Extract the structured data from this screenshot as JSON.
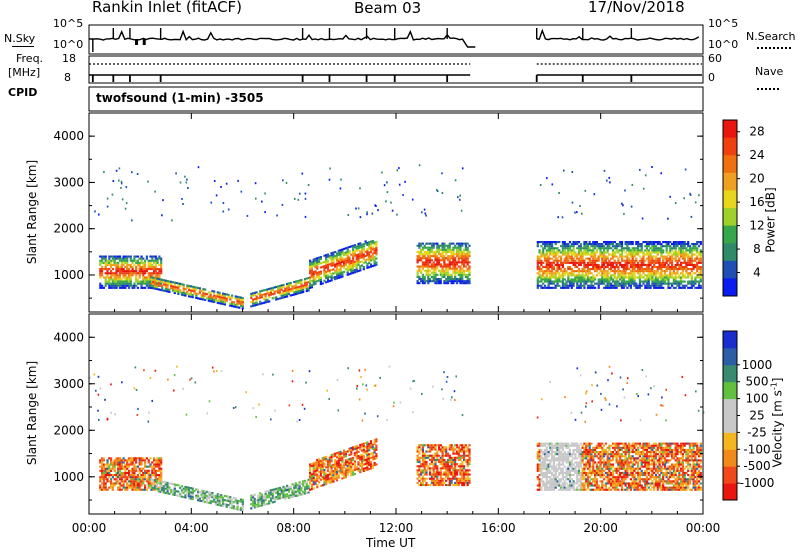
{
  "header": {
    "station": "Rankin Inlet (fitACF)",
    "beam": "Beam 03",
    "date": "17/Nov/2018"
  },
  "info": {
    "nsky_label": "N.Sky",
    "nsky_top": "10^5",
    "nsky_bottom": "10^0",
    "nsearch_label": "N.Search",
    "nsearch_top": "10^5",
    "nsearch_bottom": "10^0",
    "freq_label": "Freq.",
    "freq_unit": "[MHz]",
    "freq_top": "18",
    "freq_bottom": "8",
    "cpid_label": "CPID",
    "nave_label": "Nave",
    "nave_top": "60",
    "nave_bottom": "0",
    "program": "twofsound (1-min)  -3505"
  },
  "colors": {
    "power": [
      "#0a1cf0",
      "#1f4fb5",
      "#2f8a6a",
      "#38a64a",
      "#9ed22a",
      "#e8d61c",
      "#f0a020",
      "#f07010",
      "#f04010",
      "#e8160e"
    ],
    "velocity": [
      "#e8160e",
      "#f04818",
      "#f28a1a",
      "#f4b61e",
      "#c8c8c8",
      "#c8c8c8",
      "#62c040",
      "#3a8a70",
      "#2c5ea8",
      "#1a2ed0"
    ]
  },
  "chart_data": [
    {
      "type": "heatmap",
      "name": "power",
      "xlabel": "",
      "ylabel": "Slant Range [km]",
      "xlim": [
        0,
        24
      ],
      "ylim": [
        200,
        4500
      ],
      "yticks": [
        "1000",
        "2000",
        "3000",
        "4000"
      ],
      "colorbar": {
        "label": "Power [dB]",
        "ticks": [
          "4",
          "8",
          "12",
          "16",
          "20",
          "24",
          "28"
        ],
        "range": [
          0,
          30
        ]
      },
      "echo_regions_hours_km": [
        [
          0.4,
          2.8,
          700,
          1400
        ],
        [
          2.4,
          6.0,
          250,
          700
        ],
        [
          6.3,
          8.6,
          250,
          800
        ],
        [
          8.6,
          11.2,
          800,
          1800
        ],
        [
          12.8,
          14.9,
          800,
          1700
        ],
        [
          17.5,
          23.9,
          700,
          1700
        ]
      ]
    },
    {
      "type": "heatmap",
      "name": "velocity",
      "xlabel": "Time UT",
      "ylabel": "Slant Range [km]",
      "xlim": [
        0,
        24
      ],
      "ylim": [
        200,
        4500
      ],
      "yticks": [
        "1000",
        "2000",
        "3000",
        "4000"
      ],
      "xticks": [
        "00:00",
        "04:00",
        "08:00",
        "12:00",
        "16:00",
        "20:00",
        "00:00"
      ],
      "colorbar": {
        "label": "Velocity [m s^-1]",
        "ticks": [
          "-1000",
          "-500",
          "-100",
          "-25",
          "25",
          "100",
          "500",
          "1000"
        ]
      }
    }
  ]
}
